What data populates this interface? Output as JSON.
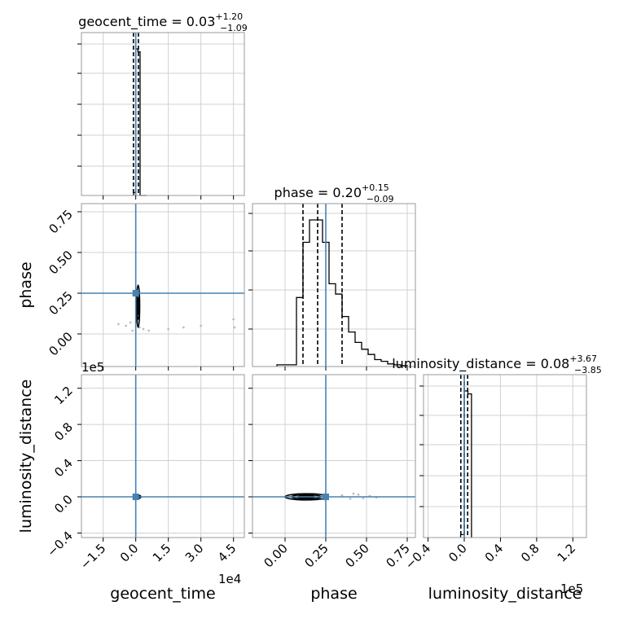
{
  "chart_data": {
    "type": "corner",
    "truth_color": "#4682b4",
    "parameters": [
      "geocent_time",
      "phase",
      "luminosity_distance"
    ],
    "titles": [
      {
        "label": "geocent_time",
        "median": "0.03",
        "plus": "+1.20",
        "minus": "−1.09"
      },
      {
        "label": "phase",
        "median": "0.20",
        "plus": "+0.15",
        "minus": "−0.09"
      },
      {
        "label": "luminosity_distance",
        "median": "0.08",
        "plus": "+3.67",
        "minus": "−3.85"
      }
    ],
    "axes": {
      "geocent_time": {
        "label": "geocent_time",
        "range": [
          -25000,
          50000
        ],
        "ticks": [
          -15000,
          0,
          15000,
          30000,
          45000
        ],
        "tick_labels": [
          "−1.5",
          "0.0",
          "1.5",
          "3.0",
          "4.5"
        ],
        "offset": "1e4",
        "truth": 0
      },
      "phase": {
        "label": "phase",
        "range": [
          -0.2,
          0.8
        ],
        "ticks": [
          0,
          0.25,
          0.5,
          0.75
        ],
        "tick_labels": [
          "0.00",
          "0.25",
          "0.50",
          "0.75"
        ],
        "truth": 0.25
      },
      "luminosity_distance": {
        "label": "luminosity_distance",
        "range": [
          -45000,
          135000
        ],
        "ticks": [
          -40000,
          0,
          40000,
          80000,
          120000
        ],
        "tick_labels": [
          "−0.4",
          "0.0",
          "0.4",
          "0.8",
          "1.2"
        ],
        "offset": "1e5",
        "truth": 0
      }
    },
    "histograms": {
      "geocent_time": {
        "bin_edges": [
          -1000,
          0,
          1000,
          2000,
          3000,
          4000,
          5000
        ],
        "counts": [
          0.02,
          1.0,
          0.98,
          0,
          0,
          0
        ],
        "quantiles": [
          -1060,
          30,
          1230
        ]
      },
      "phase": {
        "bin_edges": [
          -0.05,
          -0.01,
          0.03,
          0.07,
          0.11,
          0.15,
          0.19,
          0.23,
          0.27,
          0.31,
          0.35,
          0.39,
          0.43,
          0.47,
          0.51,
          0.55,
          0.59,
          0.63,
          0.67,
          0.71,
          0.75
        ],
        "counts": [
          0.01,
          0.01,
          0.01,
          0.4,
          0.72,
          0.85,
          0.85,
          0.72,
          0.48,
          0.42,
          0.29,
          0.2,
          0.14,
          0.1,
          0.07,
          0.04,
          0.03,
          0.015,
          0.01,
          0.005
        ],
        "quantiles": [
          0.11,
          0.2,
          0.35
        ]
      },
      "luminosity_distance": {
        "bin_edges": [
          -4000,
          0,
          4000,
          8000
        ],
        "counts": [
          0.02,
          1.0,
          0.98
        ],
        "quantiles": [
          -3770,
          80,
          3750
        ]
      }
    },
    "contours": {
      "phase_vs_geocent_time": {
        "center": [
          1100,
          0.17
        ],
        "radii": [
          [
            700,
            0.13
          ],
          [
            550,
            0.08
          ],
          [
            350,
            0.05
          ]
        ]
      },
      "luminosity_distance_vs_geocent_time": {
        "center": [
          1100,
          0
        ],
        "radii": [
          [
            1300,
            1800
          ],
          [
            900,
            1200
          ]
        ]
      },
      "luminosity_distance_vs_phase": {
        "center": [
          0.13,
          0
        ],
        "radii": [
          [
            0.13,
            3500
          ],
          [
            0.09,
            2200
          ],
          [
            0.05,
            1300
          ]
        ]
      }
    },
    "scatter": {
      "phase_vs_geocent_time": [
        [
          -8000,
          0.06
        ],
        [
          -4500,
          0.05
        ],
        [
          -2500,
          0.07
        ],
        [
          -1500,
          0.02
        ],
        [
          1800,
          0.04
        ],
        [
          3500,
          0.03
        ],
        [
          6000,
          0.02
        ],
        [
          15000,
          0.03
        ],
        [
          22000,
          0.04
        ],
        [
          30000,
          0.05
        ],
        [
          45000,
          0.09
        ],
        [
          45500,
          0.04
        ]
      ],
      "luminosity_distance_vs_phase": [
        [
          0.35,
          1500
        ],
        [
          0.4,
          -2000
        ],
        [
          0.45,
          2500
        ],
        [
          0.48,
          -1500
        ],
        [
          0.52,
          1000
        ],
        [
          0.56,
          -800
        ],
        [
          0.42,
          3500
        ]
      ]
    }
  }
}
